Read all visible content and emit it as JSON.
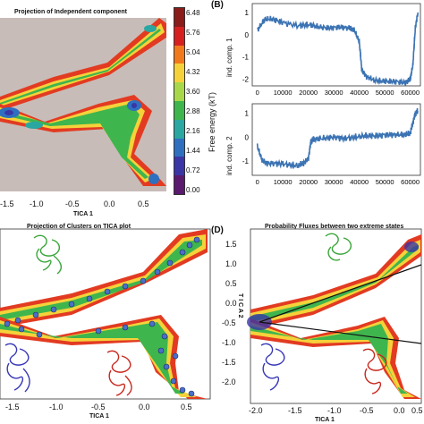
{
  "figure": {
    "panel_labels": {
      "B": "(B)",
      "D": "(D)"
    },
    "panel_a": {
      "title": "Projection of Independent component",
      "xlabel": "TICA 1",
      "xticks": [
        "-1.5",
        "-1.0",
        "-0.5",
        "0.0",
        "0.5"
      ],
      "colorbar": {
        "label": "Free energy (kT)",
        "ticks": [
          "6.48",
          "5.76",
          "5.04",
          "4.32",
          "3.60",
          "2.88",
          "2.16",
          "1.44",
          "0.72",
          "0.00"
        ],
        "colors": [
          "#8a1c1c",
          "#d62020",
          "#f2781c",
          "#f5d23a",
          "#a8d84a",
          "#3fb54d",
          "#2aa7a0",
          "#2f6fc0",
          "#3a36a6",
          "#5a1a6e"
        ]
      }
    },
    "panel_b": {
      "top": {
        "ylabel": "ind. comp. 1",
        "yticks": [
          "1",
          "0",
          "-1",
          "-2"
        ],
        "xticks": [
          "0",
          "10000",
          "20000",
          "30000",
          "40000",
          "50000",
          "60000"
        ]
      },
      "bottom": {
        "ylabel": "ind. comp. 2",
        "yticks": [
          "1",
          "0",
          "-1"
        ],
        "xticks": [
          "0",
          "10000",
          "20000",
          "30000",
          "40000",
          "50000",
          "60000"
        ]
      },
      "line_color": "#3b73b3"
    },
    "panel_c": {
      "title": "Projection of Clusters on TICA plot",
      "xlabel": "TICA 1",
      "xticks": [
        "-1.5",
        "-1.0",
        "-0.5",
        "0.0",
        "0.5"
      ]
    },
    "panel_d": {
      "title": "Probability Fluxes between two extreme states",
      "xlabel": "TICA 1",
      "ylabel": "T I C A 2",
      "yticks": [
        "1.5",
        "1.0",
        "0.5",
        "0.0",
        "-0.5",
        "-1.0",
        "-1.5",
        "-2.0"
      ],
      "xticks": [
        "-2.0",
        "-1.5",
        "-1.0",
        "-0.5",
        "0.0",
        "0.5"
      ]
    }
  },
  "chart_data": [
    {
      "type": "line",
      "ylabel": "ind. comp. 1",
      "xlim": [
        -2000,
        64000
      ],
      "ylim": [
        -2.3,
        1.4
      ],
      "series": [
        {
          "x": [
            0,
            3000,
            6000,
            10000,
            16000,
            20000,
            24000,
            28000,
            32000,
            36000,
            38000,
            40000,
            41000,
            43000,
            46000,
            50000,
            54000,
            58000,
            60000,
            61000,
            62000,
            63000
          ],
          "values": [
            0.2,
            0.7,
            0.7,
            0.55,
            0.4,
            0.45,
            0.35,
            0.3,
            0.35,
            0.3,
            0.2,
            -0.3,
            -1.6,
            -1.9,
            -2.05,
            -2.1,
            -2.1,
            -2.15,
            -2.0,
            -1.4,
            0.3,
            1.0
          ]
        }
      ]
    },
    {
      "type": "line",
      "ylabel": "ind. comp. 2",
      "xlim": [
        -2000,
        64000
      ],
      "ylim": [
        -1.6,
        1.4
      ],
      "series": [
        {
          "x": [
            0,
            2000,
            4000,
            8000,
            12000,
            16000,
            18000,
            20000,
            21000,
            22000,
            26000,
            30000,
            34000,
            38000,
            42000,
            46000,
            50000,
            54000,
            58000,
            60000,
            61000,
            62000,
            63000
          ],
          "values": [
            -0.4,
            -1.0,
            -1.1,
            -1.1,
            -1.15,
            -1.2,
            -1.1,
            -0.9,
            -0.2,
            -0.1,
            -0.05,
            0.0,
            -0.05,
            0.0,
            0.05,
            0.05,
            0.1,
            0.1,
            0.1,
            0.15,
            0.6,
            1.0,
            1.1
          ]
        }
      ]
    }
  ]
}
